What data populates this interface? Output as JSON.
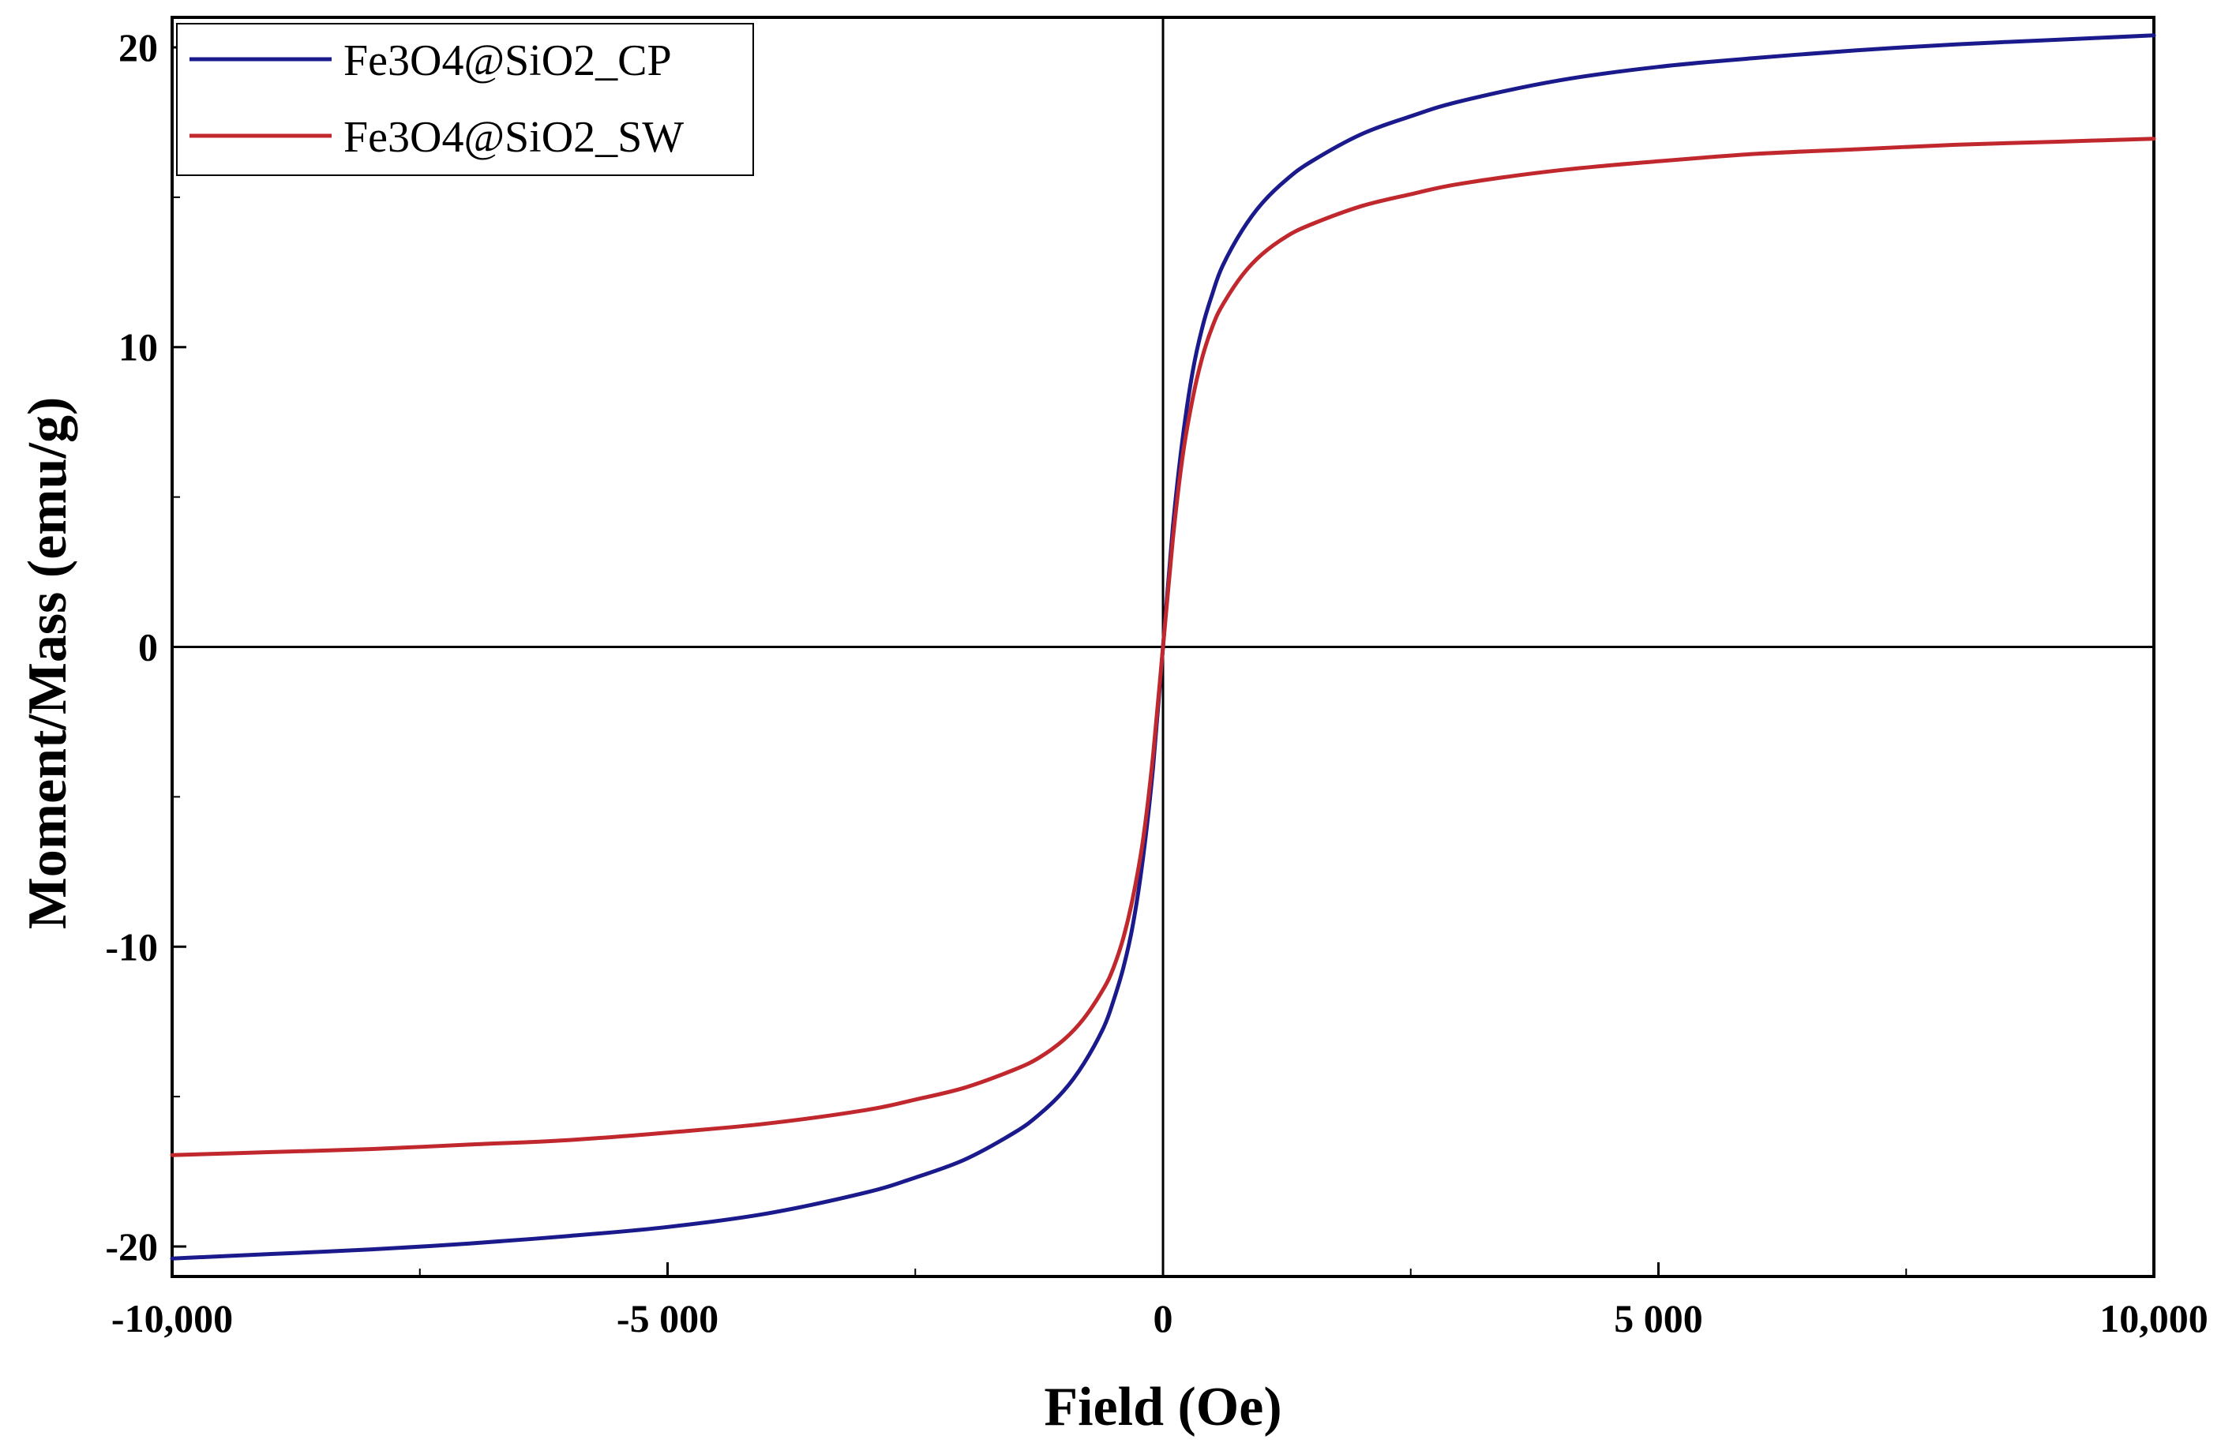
{
  "chart_data": {
    "type": "line",
    "title": "",
    "xlabel": "Field (Oe)",
    "ylabel": "Moment/Mass (emu/g)",
    "xlim": [
      -10000,
      10000
    ],
    "ylim": [
      -21,
      21
    ],
    "grid": false,
    "legend_position": "top-left",
    "x_ticks": [
      {
        "value": -10000,
        "label": "-10,000"
      },
      {
        "value": -5000,
        "label": "-5 000"
      },
      {
        "value": 0,
        "label": "0"
      },
      {
        "value": 5000,
        "label": "5 000"
      },
      {
        "value": 10000,
        "label": "10,000"
      }
    ],
    "y_ticks": [
      {
        "value": -20,
        "label": "-20"
      },
      {
        "value": -10,
        "label": "-10"
      },
      {
        "value": 0,
        "label": "0"
      },
      {
        "value": 10,
        "label": "10"
      },
      {
        "value": 20,
        "label": "20"
      }
    ],
    "x": [
      0,
      100,
      200,
      300,
      400,
      500,
      600,
      800,
      1000,
      1250,
      1500,
      2000,
      2500,
      3000,
      4000,
      5000,
      6000,
      7000,
      8000,
      9000,
      10000
    ],
    "series": [
      {
        "name": "Fe3O4@SiO2_CP",
        "color": "#1a1a8c",
        "values": [
          0,
          4.0,
          7.0,
          9.2,
          10.7,
          11.8,
          12.7,
          13.9,
          14.8,
          15.6,
          16.2,
          17.1,
          17.7,
          18.2,
          18.9,
          19.35,
          19.65,
          19.9,
          20.1,
          20.25,
          20.4
        ]
      },
      {
        "name": "Fe3O4@SiO2_SW",
        "color": "#c0282d",
        "values": [
          0,
          3.6,
          6.4,
          8.3,
          9.7,
          10.7,
          11.4,
          12.4,
          13.1,
          13.7,
          14.1,
          14.7,
          15.1,
          15.45,
          15.9,
          16.2,
          16.45,
          16.6,
          16.75,
          16.85,
          16.95
        ]
      }
    ]
  }
}
